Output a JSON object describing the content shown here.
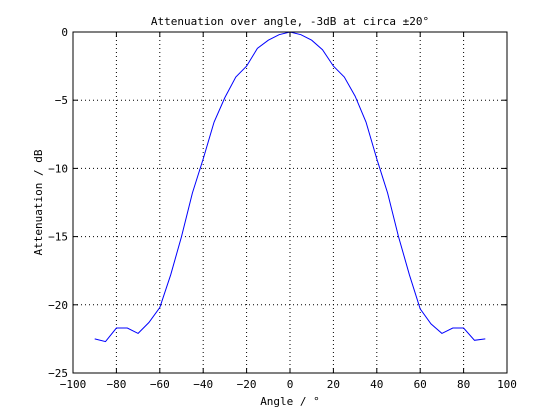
{
  "chart_data": {
    "type": "line",
    "title": "Attenuation over angle, -3dB at circa ±20°",
    "xlabel": "Angle / °",
    "ylabel": "Attenuation / dB",
    "xlim": [
      -100,
      100
    ],
    "ylim": [
      -25,
      0
    ],
    "xticks": [
      -100,
      -80,
      -60,
      -40,
      -20,
      0,
      20,
      40,
      60,
      80,
      100
    ],
    "yticks": [
      0,
      -5,
      -10,
      -15,
      -20,
      -25
    ],
    "xtick_labels": [
      "−100",
      "−80",
      "−60",
      "−40",
      "−20",
      "0",
      "20",
      "40",
      "60",
      "80",
      "100"
    ],
    "ytick_labels": [
      "0",
      "−5",
      "−10",
      "−15",
      "−20",
      "−25"
    ],
    "grid": true,
    "grid_style": "dotted",
    "series": [
      {
        "color": "#0000ff",
        "x": [
          -90,
          -85,
          -80,
          -75,
          -70,
          -65,
          -60,
          -55,
          -50,
          -45,
          -40,
          -35,
          -30,
          -25,
          -20,
          -15,
          -10,
          -5,
          0,
          5,
          10,
          15,
          20,
          25,
          30,
          35,
          40,
          45,
          50,
          55,
          60,
          65,
          70,
          75,
          80,
          85,
          90
        ],
        "values": [
          -22.5,
          -22.7,
          -21.7,
          -21.7,
          -22.1,
          -21.3,
          -20.2,
          -17.8,
          -15.0,
          -11.8,
          -9.3,
          -6.6,
          -4.8,
          -3.3,
          -2.5,
          -1.2,
          -0.6,
          -0.2,
          0.0,
          -0.2,
          -0.6,
          -1.3,
          -2.5,
          -3.3,
          -4.7,
          -6.6,
          -9.3,
          -11.8,
          -15.0,
          -17.8,
          -20.3,
          -21.4,
          -22.1,
          -21.7,
          -21.7,
          -22.6,
          -22.5
        ]
      }
    ]
  }
}
